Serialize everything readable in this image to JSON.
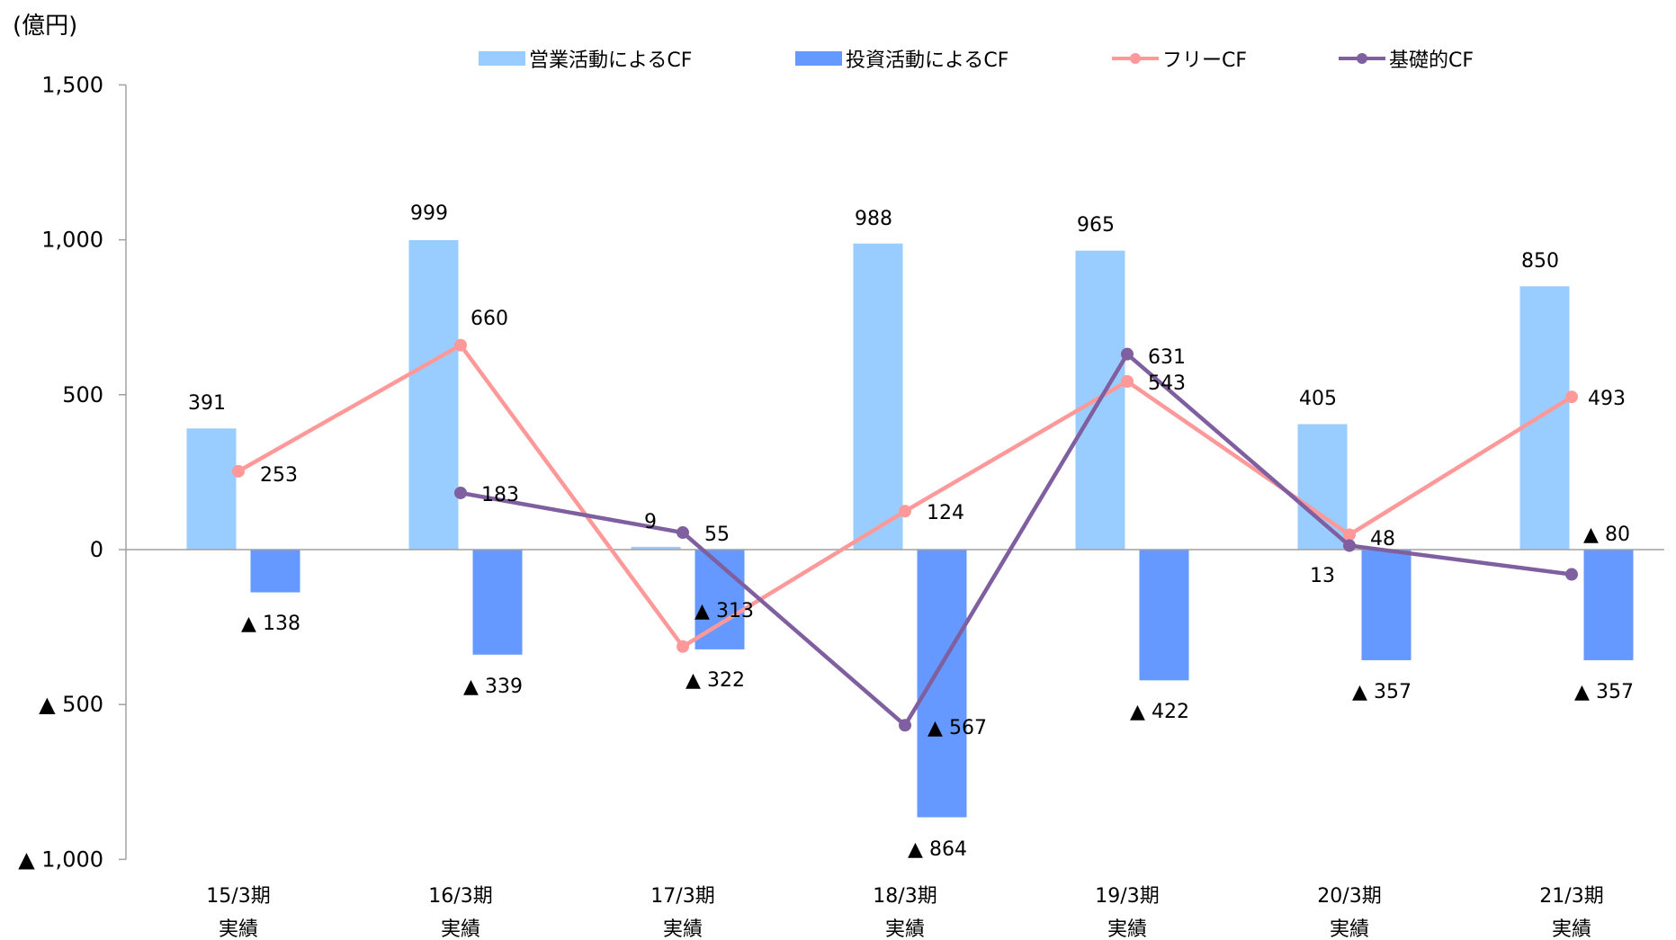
{
  "chart_data": {
    "type": "bar",
    "unit_label": "(億円)",
    "categories": [
      "15/3期",
      "16/3期",
      "17/3期",
      "18/3期",
      "19/3期",
      "20/3期",
      "21/3期"
    ],
    "category_sublabel": "実績",
    "ylim": [
      -1000,
      1500
    ],
    "yticks": [
      -1000,
      -500,
      0,
      500,
      1000,
      1500
    ],
    "ytick_labels": [
      "▲ 1,000",
      "▲ 500",
      "0",
      "500",
      "1,000",
      "1,500"
    ],
    "grid": false,
    "legend_position": "top",
    "series": [
      {
        "name": "営業活動によるCF",
        "kind": "bar",
        "color": "#99CCFF",
        "values": [
          391,
          999,
          9,
          988,
          965,
          405,
          850
        ],
        "labels": [
          "391",
          "999",
          "9",
          "988",
          "965",
          "405",
          "850"
        ]
      },
      {
        "name": "投資活動によるCF",
        "kind": "bar",
        "color": "#6699FF",
        "values": [
          -138,
          -339,
          -322,
          -864,
          -422,
          -357,
          -357
        ],
        "labels": [
          "▲ 138",
          "▲ 339",
          "▲ 322",
          "▲ 864",
          "▲ 422",
          "▲ 357",
          "▲ 357"
        ]
      },
      {
        "name": "フリーCF",
        "kind": "line",
        "color": "#FF9999",
        "values": [
          253,
          660,
          -313,
          124,
          543,
          48,
          493
        ],
        "labels": [
          "253",
          "660",
          "▲ 313",
          "124",
          "543",
          "48",
          "493"
        ]
      },
      {
        "name": "基礎的CF",
        "kind": "line",
        "color": "#7F5FA0",
        "values": [
          null,
          183,
          55,
          -567,
          631,
          13,
          -80
        ],
        "labels": [
          null,
          "183",
          "55",
          "▲ 567",
          "631",
          "13",
          "▲ 80"
        ]
      }
    ]
  }
}
